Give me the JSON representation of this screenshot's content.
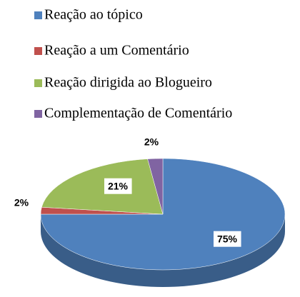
{
  "chart_data": {
    "type": "pie",
    "categories": [
      "Reação ao tópico",
      "Reação a um Comentário",
      "Reação dirigida ao Blogueiro",
      "Complementação de Comentário"
    ],
    "values": [
      75,
      2,
      21,
      2
    ],
    "value_labels": [
      "75%",
      "2%",
      "21%",
      "2%"
    ],
    "colors": [
      "#4f81bd",
      "#c0504d",
      "#9bbb59",
      "#8064a2"
    ]
  }
}
